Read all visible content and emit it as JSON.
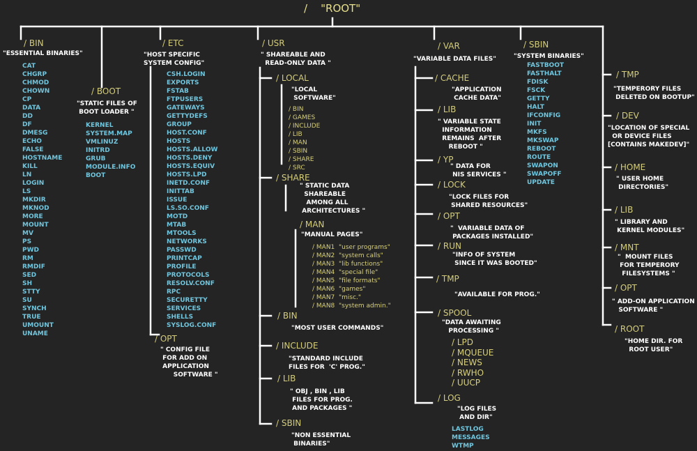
{
  "root_label": "/    \"ROOT\"",
  "nodes": [
    {
      "text": "/ BIN",
      "role": "dir"
    },
    {
      "text": "\"ESSENTIAL BINARIES\"",
      "role": "desc"
    },
    {
      "text": "CAT\nCHGRP\nCHMOD\nCHOWN\nCP\nDATA\nDD\nDF\nDMESG\nECHO\nFALSE\nHOSTNAME\nKILL\nLN\nLOGIN\nLS\nMKDIR\nMKNOD\nMORE\nMOUNT\nMV\nPS\nPWD\nRM\nRMDIF\nSED\nSH\nSTTY\nSU\nSYNCH\nTRUE\nUMOUNT\nUNAME",
      "role": "file"
    },
    {
      "text": "/ BOOT",
      "role": "dir"
    },
    {
      "text": "\"STATIC FILES OF\n BOOT LOADER \"",
      "role": "desc"
    },
    {
      "text": "KERNEL\nSYSTEM.MAP\nVMLINUZ\nINITRD\nGRUB\nMODULE.INFO\nBOOT",
      "role": "file"
    },
    {
      "text": "/ ETC",
      "role": "dir"
    },
    {
      "text": "\"HOST SPECIFIC\nSYSTEM CONFIG\"",
      "role": "desc"
    },
    {
      "text": "CSH.LOGIN\nEXPORTS\nFSTAB\nFTPUSERS\nGATEWAYS\nGETTYDEFS\nGROUP\nHOST.CONF\nHOSTS\nHOSTS.ALLOW\nHOSTS.DENY\nHOSTS.EQUIV\nHOSTS.LPD\nINETD.CONF\nINITTAB\nISSUE\nLS.SO.CONF\nMOTD\nMTAB\nMTOOLS\nNETWORKS\nPASSWD\nPRINTCAP\nPROFILE\nPROTOCOLS\nRESOLV.CONF\nRPC\nSECURETTY\nSERVICES\nSHELLS\nSYSLOG.CONF",
      "role": "file"
    },
    {
      "text": "/ OPT",
      "role": "dir"
    },
    {
      "text": "\" CONFIG FILE\n FOR ADD ON\n APPLICATION\n      SOFTWARE \"",
      "role": "desc"
    },
    {
      "text": "/ USR",
      "role": "dir"
    },
    {
      "text": "\" SHAREABLE AND\n  READ-ONLY DATA \"",
      "role": "desc"
    },
    {
      "text": "/ LOCAL",
      "role": "dir"
    },
    {
      "text": "\"LOCAL\n SOFTWARE\"",
      "role": "desc"
    },
    {
      "text": "/ BIN\n/ GAMES\n/ INCLUDE\n/ LIB\n/ MAN\n/ SBIN\n/ SHARE\n/ SRC",
      "role": "sub"
    },
    {
      "text": "/ SHARE",
      "role": "dir"
    },
    {
      "text": "\" STATIC DATA\n  SHAREABLE\n   AMONG ALL\n ARCHITECTURES \"",
      "role": "desc"
    },
    {
      "text": "/ MAN",
      "role": "dir"
    },
    {
      "text": "\"MANUAL PAGES\"",
      "role": "desc"
    },
    {
      "text": "/ MAN1  \"user programs\"\n/ MAN2  \"system calls\"\n/ MAN3  \"lib functions\"\n/ MAN4  \"special file\"\n/ MAN5  \"file formats\"\n/ MAN6  \"games\"\n/ MAN7  \"misc.\"\n/ MAN8  \"system admin.\"",
      "role": "sub"
    },
    {
      "text": "/ BIN",
      "role": "dir"
    },
    {
      "text": "\"MOST USER COMMANDS\"",
      "role": "desc"
    },
    {
      "text": "/ INCLUDE",
      "role": "dir"
    },
    {
      "text": "\"STANDARD INCLUDE\nFILES FOR  'C' PROG.\"",
      "role": "desc"
    },
    {
      "text": "/ LIB",
      "role": "dir"
    },
    {
      "text": "\" OBJ , BIN , LIB\n FILES FOR PROG.\n AND PACKAGES \"",
      "role": "desc"
    },
    {
      "text": "/ SBIN",
      "role": "dir"
    },
    {
      "text": "\"NON ESSENTIAL\n BINARIES\"",
      "role": "desc"
    },
    {
      "text": "/ VAR",
      "role": "dir"
    },
    {
      "text": "\"VARIABLE DATA FILES\"",
      "role": "desc"
    },
    {
      "text": "/ CACHE",
      "role": "dir"
    },
    {
      "text": "\"APPLICATION\n CACHE DATA\"",
      "role": "desc"
    },
    {
      "text": "/ LIB",
      "role": "dir"
    },
    {
      "text": "\" VARIABLE STATE\n  INFORMATION\n  REMAINS  AFTER\n     REBOOT \"",
      "role": "desc"
    },
    {
      "text": "/ YP",
      "role": "dir"
    },
    {
      "text": "\" DATA FOR\n NIS SERVICES \"",
      "role": "desc"
    },
    {
      "text": "/ LOCK",
      "role": "dir"
    },
    {
      "text": "\"LOCK FILES FOR\n SHARED RESOURCES\"",
      "role": "desc"
    },
    {
      "text": "/ OPT",
      "role": "dir"
    },
    {
      "text": "\"  VARIABLE DATA OF\n PACKAGES INSTALLED\"",
      "role": "desc"
    },
    {
      "text": "/ RUN",
      "role": "dir"
    },
    {
      "text": "\"INFO OF SYSTEM\n SINCE IT WAS BOOTED\"",
      "role": "desc"
    },
    {
      "text": "/ TMP",
      "role": "dir"
    },
    {
      "text": "\"AVAILABLE FOR PROG.\"",
      "role": "desc"
    },
    {
      "text": "/ SPOOL",
      "role": "dir"
    },
    {
      "text": "\"DATA AWAITING\n   PROCESSING \"",
      "role": "desc"
    },
    {
      "text": "/ LPD\n/ MQUEUE\n/ NEWS\n/ RWHO\n/ UUCP",
      "role": "sub"
    },
    {
      "text": "/ LOG",
      "role": "dir"
    },
    {
      "text": "\"LOG FILES\n AND DIR\"",
      "role": "desc"
    },
    {
      "text": "LASTLOG\nMESSAGES\nWTMP",
      "role": "file"
    },
    {
      "text": "/ SBIN",
      "role": "dir"
    },
    {
      "text": "\"SYSTEM BINARIES\"",
      "role": "desc"
    },
    {
      "text": "FASTBOOT\nFASTHALT\nFDISK\nFSCK\nGETTY\nHALT\nIFCONFIG\nINIT\nMKFS\nMKSWAP\nREBOOT\nROUTE\nSWAPON\nSWAPOFF\nUPDATE",
      "role": "file"
    },
    {
      "text": "/ TMP",
      "role": "dir"
    },
    {
      "text": "\"TEMPERORY FILES\n DELETED ON BOOTUP\"",
      "role": "desc"
    },
    {
      "text": "/ DEV",
      "role": "dir"
    },
    {
      "text": "\"LOCATION OF SPECIAL\n  OR DEVICE FILES\n[CONTAINS MAKEDEV]\"",
      "role": "desc"
    },
    {
      "text": "/ HOME",
      "role": "dir"
    },
    {
      "text": "\" USER HOME\n DIRECTORIES\"",
      "role": "desc"
    },
    {
      "text": "/ LIB",
      "role": "dir"
    },
    {
      "text": "\" LIBRARY AND\n KERNEL MODULES\"",
      "role": "desc"
    },
    {
      "text": "/ MNT",
      "role": "dir"
    },
    {
      "text": "\"  MOUNT FILES\n FOR TEMPERORY\n  FILESYSTEMS \"",
      "role": "desc"
    },
    {
      "text": "/ OPT",
      "role": "dir"
    },
    {
      "text": "\" ADD-ON APPLICATION\n   SOFTWARE \"",
      "role": "desc"
    },
    {
      "text": "/ ROOT",
      "role": "dir"
    },
    {
      "text": "\"HOME DIR. FOR\n  ROOT USER\"",
      "role": "desc"
    }
  ],
  "colors": {
    "background": "#242424",
    "line": "#ffffff",
    "directory": "#d4cd7a",
    "description": "#ffffff",
    "file": "#6fc6de"
  }
}
